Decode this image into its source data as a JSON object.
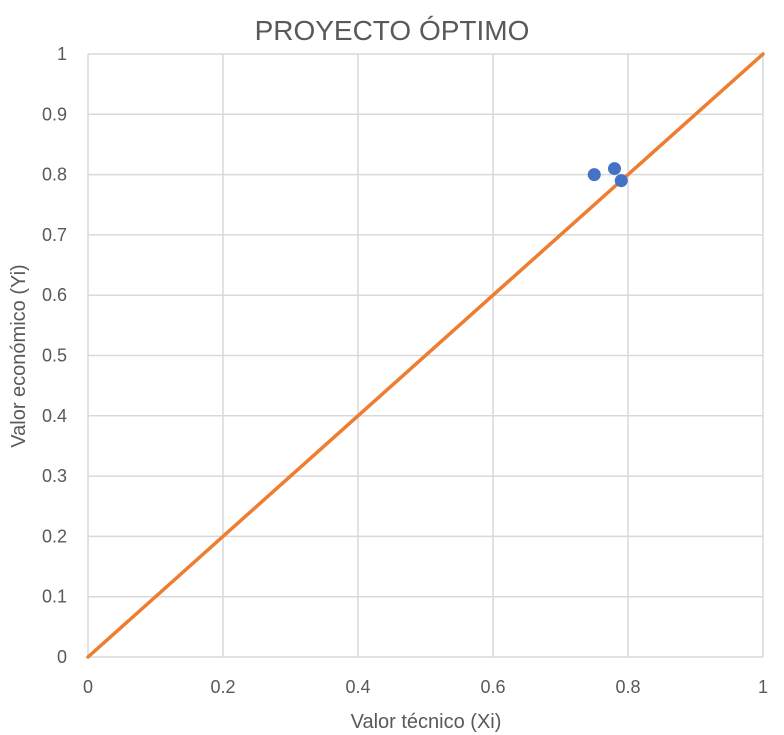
{
  "chart_data": {
    "type": "scatter",
    "title": "PROYECTO ÓPTIMO",
    "xlabel": "Valor técnico (Xi)",
    "ylabel": "Valor económico (Yi)",
    "xlim": [
      0,
      1
    ],
    "ylim": [
      0,
      1
    ],
    "x_ticks": [
      "0",
      "0.2",
      "0.4",
      "0.6",
      "0.8",
      "1"
    ],
    "y_ticks": [
      "0",
      "0.1",
      "0.2",
      "0.3",
      "0.4",
      "0.5",
      "0.6",
      "0.7",
      "0.8",
      "0.9",
      "1"
    ],
    "grid": true,
    "series": [
      {
        "kind": "scatter",
        "color": "#4472c4",
        "points": [
          {
            "x": 0.75,
            "y": 0.8
          },
          {
            "x": 0.78,
            "y": 0.81
          },
          {
            "x": 0.79,
            "y": 0.79
          }
        ]
      },
      {
        "kind": "line",
        "color": "#ed7d31",
        "points": [
          {
            "x": 0,
            "y": 0
          },
          {
            "x": 1,
            "y": 1
          }
        ]
      }
    ]
  }
}
